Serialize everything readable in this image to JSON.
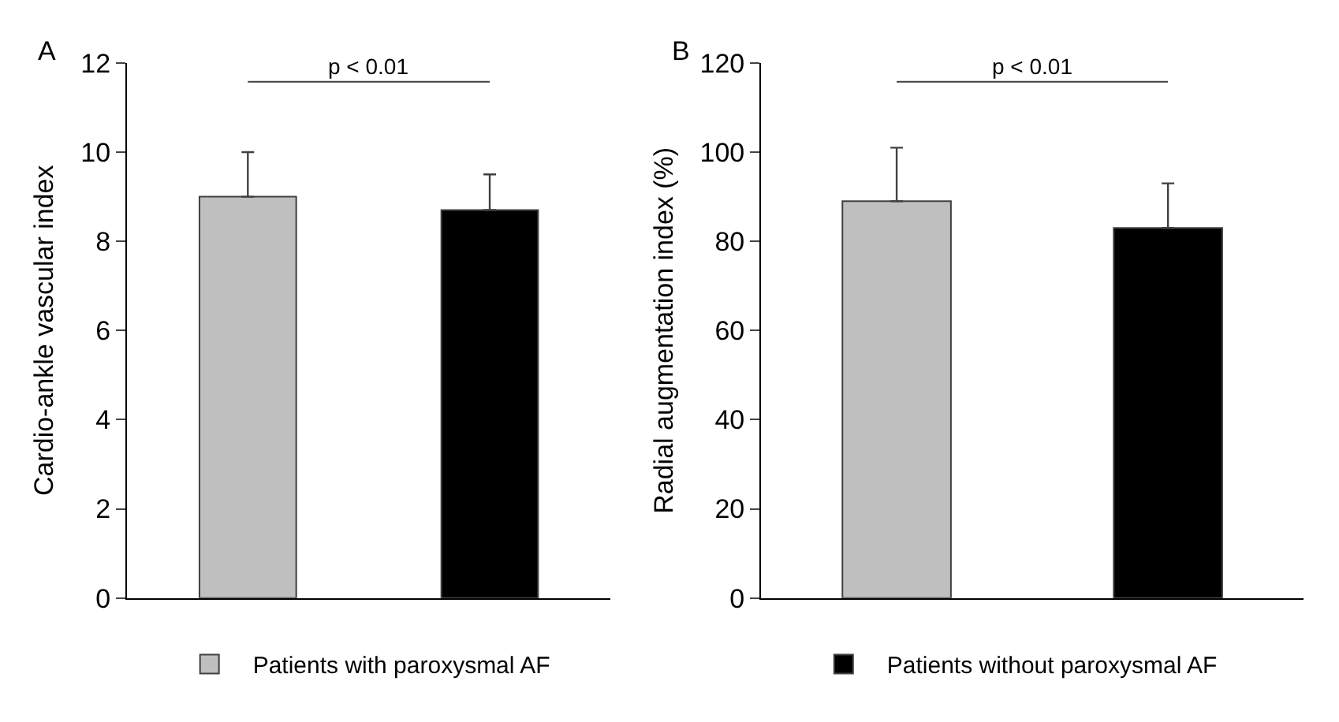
{
  "chart_data": [
    {
      "type": "bar",
      "title": "A",
      "ylabel": "Cardio-ankle vascular index",
      "categories": [
        null,
        null
      ],
      "series": [
        {
          "name": "Patients with paroxysmal AF",
          "color": "#bfbfbf",
          "values": [
            9.0,
            null
          ],
          "errors": [
            [
              9.0,
              10.0
            ],
            null
          ]
        },
        {
          "color": "#000000",
          "values": [
            null,
            8.7
          ],
          "errors": [
            null,
            [
              8.7,
              9.5
            ]
          ]
        }
      ],
      "ylim": [
        0,
        12
      ],
      "yticks": [
        0,
        2,
        4,
        6,
        8,
        10,
        12
      ],
      "annotations": [
        "p < 0.01"
      ],
      "legend": "bottom"
    },
    {
      "type": "bar",
      "title": "B",
      "ylabel": "Radial augmentation index (%)",
      "categories": [
        null,
        null
      ],
      "series": [
        {
          "color": "#bfbfbf",
          "values": [
            89,
            null
          ],
          "errors": [
            [
              89,
              101
            ],
            null
          ]
        },
        {
          "name": "Patients without paroxysmal AF",
          "color": "#000000",
          "values": [
            null,
            83
          ],
          "errors": [
            null,
            [
              83,
              93
            ]
          ]
        }
      ],
      "ylim": [
        0,
        120
      ],
      "yticks": [
        0,
        20,
        40,
        60,
        80,
        100,
        120
      ],
      "annotations": [
        "p < 0.01"
      ],
      "legend": "bottom"
    }
  ]
}
